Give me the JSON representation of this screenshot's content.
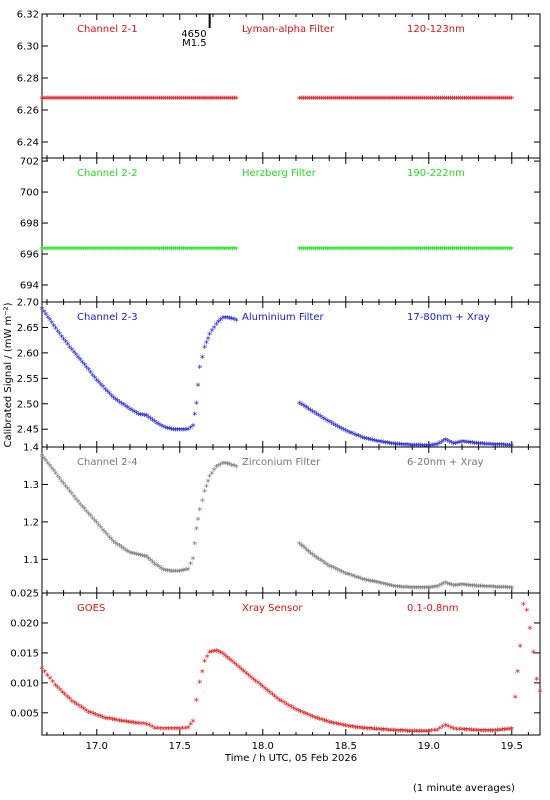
{
  "chart_data": {
    "type": "scatter",
    "ylabel": "Calibrated Signal / (mW m⁻²)",
    "xlabel": "Time / h UTC, 05 Feb 2026",
    "footnote": "(1 minute averages)",
    "xlim": [
      16.67,
      19.67
    ],
    "x_ticks": [
      "17.0",
      "17.5",
      "18.0",
      "18.5",
      "19.0",
      "19.5"
    ],
    "flare_marker": {
      "x": 17.68,
      "label1": "4650",
      "label2": "M1.5"
    },
    "panels": [
      {
        "channel": "Channel 2-1",
        "filter": "Lyman-alpha Filter",
        "band": "120-123nm",
        "color": "#e01010",
        "ylim": [
          6.23,
          6.32
        ],
        "y_ticks": [
          "6.24",
          "6.26",
          "6.28",
          "6.30",
          "6.32"
        ],
        "y_tick_values": [
          6.24,
          6.26,
          6.28,
          6.3,
          6.32
        ],
        "segments": [
          {
            "x": [
              16.67,
              17.5,
              17.84
            ],
            "y": [
              6.267,
              6.267,
              6.267
            ]
          },
          {
            "x": [
              18.22,
              19.0,
              19.5
            ],
            "y": [
              6.267,
              6.267,
              6.267
            ]
          }
        ]
      },
      {
        "channel": "Channel 2-2",
        "filter": "Herzberg Filter",
        "band": "190-222nm",
        "color": "#22dd22",
        "ylim": [
          692.9,
          702.2
        ],
        "y_ticks": [
          "694",
          "696",
          "698",
          "700",
          "702"
        ],
        "y_tick_values": [
          694,
          696,
          698,
          700,
          702
        ],
        "segments": [
          {
            "x": [
              16.67,
              17.5,
              17.84
            ],
            "y": [
              696.3,
              696.3,
              696.3
            ]
          },
          {
            "x": [
              18.22,
              19.0,
              19.5
            ],
            "y": [
              696.3,
              696.3,
              696.3
            ]
          }
        ]
      },
      {
        "channel": "Channel 2-3",
        "filter": "Aluminium Filter",
        "band": "17-80nm + Xray",
        "color": "#1a1ad0",
        "ylim": [
          2.415,
          2.7
        ],
        "y_ticks": [
          "2.45",
          "2.50",
          "2.55",
          "2.60",
          "2.65",
          "2.70"
        ],
        "y_tick_values": [
          2.45,
          2.5,
          2.55,
          2.6,
          2.65,
          2.7
        ],
        "segments": [
          {
            "x": [
              16.67,
              16.8,
              16.9,
              17.0,
              17.1,
              17.2,
              17.25,
              17.3,
              17.35,
              17.4,
              17.45,
              17.5,
              17.55,
              17.58,
              17.6,
              17.62,
              17.65,
              17.68,
              17.72,
              17.76,
              17.8,
              17.84
            ],
            "y": [
              2.685,
              2.625,
              2.585,
              2.545,
              2.51,
              2.488,
              2.478,
              2.475,
              2.463,
              2.453,
              2.448,
              2.447,
              2.448,
              2.455,
              2.5,
              2.57,
              2.61,
              2.635,
              2.655,
              2.668,
              2.667,
              2.663
            ]
          },
          {
            "x": [
              18.22,
              18.3,
              18.4,
              18.5,
              18.6,
              18.7,
              18.8,
              18.9,
              19.0,
              19.05,
              19.1,
              19.15,
              19.2,
              19.3,
              19.4,
              19.5
            ],
            "y": [
              2.5,
              2.483,
              2.463,
              2.445,
              2.432,
              2.424,
              2.419,
              2.417,
              2.416,
              2.418,
              2.428,
              2.42,
              2.424,
              2.42,
              2.418,
              2.417
            ]
          }
        ]
      },
      {
        "channel": "Channel 2-4",
        "filter": "Zirconium Filter",
        "band": "6-20nm + Xray",
        "color": "#777777",
        "ylim": [
          1.01,
          1.4
        ],
        "y_ticks": [
          "1.1",
          "1.2",
          "1.3",
          "1.4"
        ],
        "y_tick_values": [
          1.1,
          1.2,
          1.3,
          1.4
        ],
        "segments": [
          {
            "x": [
              16.67,
              16.8,
              16.9,
              17.0,
              17.1,
              17.2,
              17.3,
              17.35,
              17.4,
              17.45,
              17.5,
              17.55,
              17.58,
              17.6,
              17.62,
              17.65,
              17.68,
              17.72,
              17.76,
              17.8,
              17.84
            ],
            "y": [
              1.375,
              1.3,
              1.245,
              1.195,
              1.145,
              1.115,
              1.105,
              1.085,
              1.07,
              1.066,
              1.066,
              1.072,
              1.1,
              1.18,
              1.23,
              1.28,
              1.32,
              1.345,
              1.355,
              1.352,
              1.345
            ]
          },
          {
            "x": [
              18.22,
              18.3,
              18.4,
              18.5,
              18.6,
              18.7,
              18.8,
              18.9,
              19.0,
              19.05,
              19.1,
              19.15,
              19.2,
              19.3,
              19.4,
              19.5
            ],
            "y": [
              1.14,
              1.11,
              1.08,
              1.06,
              1.045,
              1.035,
              1.025,
              1.022,
              1.022,
              1.025,
              1.035,
              1.028,
              1.03,
              1.026,
              1.024,
              1.022
            ]
          }
        ]
      },
      {
        "channel": "GOES",
        "filter": "Xray Sensor",
        "band": "0.1-0.8nm",
        "color": "#e01010",
        "ylim": [
          0.0013,
          0.025
        ],
        "y_ticks": [
          "0.005",
          "0.010",
          "0.015",
          "0.020",
          "0.025"
        ],
        "y_tick_values": [
          0.005,
          0.01,
          0.015,
          0.02,
          0.025
        ],
        "segments": [
          {
            "x": [
              16.67,
              16.75,
              16.85,
              16.95,
              17.05,
              17.15,
              17.25,
              17.3,
              17.35,
              17.4,
              17.45,
              17.5,
              17.55,
              17.58,
              17.6,
              17.62,
              17.65,
              17.68,
              17.72,
              17.76,
              17.8,
              17.9,
              18.0,
              18.1,
              18.2,
              18.3,
              18.4,
              18.5,
              18.6,
              18.7,
              18.8,
              18.9,
              19.0,
              19.05,
              19.1,
              19.15,
              19.2,
              19.3,
              19.4,
              19.5,
              19.52,
              19.55,
              19.57,
              19.59,
              19.61,
              19.63,
              19.65,
              19.67
            ],
            "y": [
              0.0123,
              0.0095,
              0.0068,
              0.005,
              0.004,
              0.0035,
              0.0031,
              0.003,
              0.0023,
              0.0022,
              0.0022,
              0.0022,
              0.0024,
              0.0035,
              0.007,
              0.01,
              0.0135,
              0.015,
              0.0152,
              0.0147,
              0.0138,
              0.0115,
              0.0092,
              0.007,
              0.0054,
              0.0042,
              0.0033,
              0.0027,
              0.0023,
              0.0021,
              0.0019,
              0.0018,
              0.0018,
              0.002,
              0.0028,
              0.0022,
              0.0021,
              0.0019,
              0.0019,
              0.0022,
              0.0075,
              0.016,
              0.023,
              0.022,
              0.019,
              0.015,
              0.0105,
              0.0085
            ]
          }
        ]
      }
    ]
  }
}
